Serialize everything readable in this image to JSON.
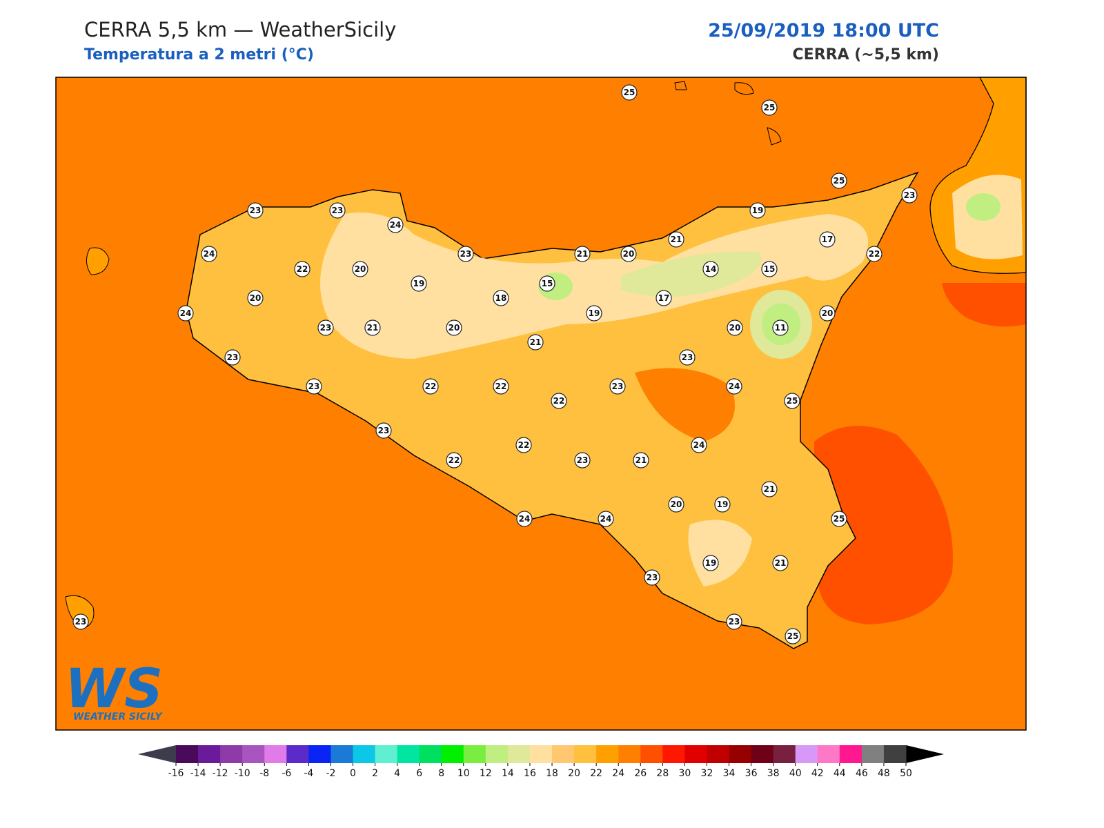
{
  "header": {
    "title": "CERRA 5,5 km — WeatherSicily",
    "subtitle": "Temperatura a 2 metri (°C)",
    "datetime": "25/09/2019 18:00 UTC",
    "model": "CERRA (~5,5 km)"
  },
  "map": {
    "sea_color": "#ff8000",
    "land_color": "#ffc040",
    "stations": [
      25,
      25,
      25,
      23,
      23,
      23,
      24,
      19,
      17,
      21,
      24,
      22,
      20,
      23,
      21,
      20,
      22,
      19,
      15,
      14,
      15,
      20,
      18,
      17,
      24,
      19,
      20,
      23,
      21,
      20,
      20,
      11,
      21,
      23,
      23,
      23,
      22,
      23,
      22,
      24,
      22,
      25,
      23,
      24,
      22,
      22,
      23,
      21,
      21,
      20,
      19,
      24,
      24,
      25,
      19,
      21,
      23,
      23,
      25,
      23
    ]
  },
  "colorbar": {
    "ticks": [
      -16,
      -14,
      -12,
      -10,
      -8,
      -6,
      -4,
      -2,
      0,
      2,
      4,
      6,
      8,
      10,
      12,
      14,
      16,
      18,
      20,
      22,
      24,
      26,
      28,
      30,
      32,
      34,
      36,
      38,
      40,
      42,
      44,
      46,
      48,
      50
    ],
    "colors": [
      "#4a0a5a",
      "#6a1b9a",
      "#8e3aa8",
      "#a855c0",
      "#e07be8",
      "#5a2bc8",
      "#0a24f5",
      "#1a7ad6",
      "#0cc8e6",
      "#5ef0d0",
      "#00e6a0",
      "#00e060",
      "#00f000",
      "#7aee40",
      "#c0ee80",
      "#e0e89a",
      "#ffe0a0",
      "#ffc870",
      "#ffc040",
      "#ffa000",
      "#ff8000",
      "#ff5000",
      "#ff1800",
      "#e00000",
      "#c00000",
      "#960000",
      "#700018",
      "#782040",
      "#d898f8",
      "#ff78c8",
      "#ff1890",
      "#808080",
      "#404040"
    ],
    "under_color": "#3c3c4c",
    "over_color": "#000000"
  },
  "logo": {
    "mark": "WS",
    "text": "WEATHER SICILY"
  }
}
